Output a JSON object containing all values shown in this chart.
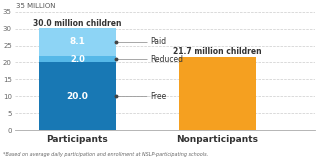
{
  "categories": [
    "Participants",
    "Nonparticipants"
  ],
  "stacked_values": {
    "Free": 20.0,
    "Reduced": 2.0,
    "Paid": 8.1
  },
  "nonparticipants_value": 21.7,
  "bar_colors": {
    "Free": "#1878b4",
    "Reduced": "#55b8e8",
    "Paid": "#8dd4f5",
    "Nonparticipants": "#f5a020"
  },
  "labels": {
    "Free": "20.0",
    "Reduced": "2.0",
    "Paid": "8.1"
  },
  "totals": {
    "Participants": "30.0 million children",
    "Nonparticipants": "21.7 million children"
  },
  "ylim": [
    0,
    35
  ],
  "yticks": [
    0,
    5,
    10,
    15,
    20,
    25,
    30,
    35
  ],
  "ylabel": "35 MILLION",
  "footnote": "*Based on average daily participation and enrollment at NSLP-participating schools.",
  "bar_width": 0.55,
  "background_color": "#ffffff",
  "grid_color": "#cccccc",
  "annotation_line_color": "#999999",
  "text_color_dark": "#333333",
  "text_color_white": "#ffffff",
  "annotation_labels": [
    "Paid",
    "Reduced",
    "Free"
  ],
  "x_positions": [
    0,
    1
  ]
}
